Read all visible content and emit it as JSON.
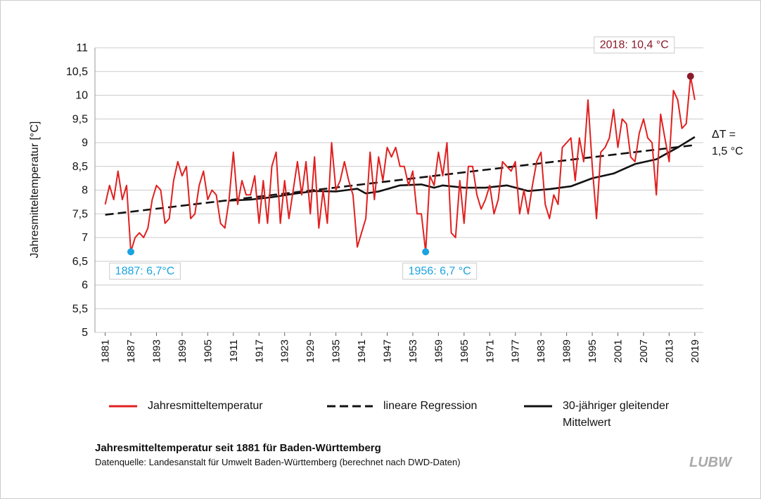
{
  "chart_data": {
    "type": "line",
    "y_label": "Jahresmitteltemperatur [°C]",
    "title": "Jahresmitteltemperatur seit 1881 für Baden-Württemberg",
    "subtitle": "Datenquelle: Landesanstalt für Umwelt Baden-Württemberg (berechnet nach DWD-Daten)",
    "logo": "LUBW",
    "x": [
      1881,
      1882,
      1883,
      1884,
      1885,
      1886,
      1887,
      1888,
      1889,
      1890,
      1891,
      1892,
      1893,
      1894,
      1895,
      1896,
      1897,
      1898,
      1899,
      1900,
      1901,
      1902,
      1903,
      1904,
      1905,
      1906,
      1907,
      1908,
      1909,
      1910,
      1911,
      1912,
      1913,
      1914,
      1915,
      1916,
      1917,
      1918,
      1919,
      1920,
      1921,
      1922,
      1923,
      1924,
      1925,
      1926,
      1927,
      1928,
      1929,
      1930,
      1931,
      1932,
      1933,
      1934,
      1935,
      1936,
      1937,
      1938,
      1939,
      1940,
      1941,
      1942,
      1943,
      1944,
      1945,
      1946,
      1947,
      1948,
      1949,
      1950,
      1951,
      1952,
      1953,
      1954,
      1955,
      1956,
      1957,
      1958,
      1959,
      1960,
      1961,
      1962,
      1963,
      1964,
      1965,
      1966,
      1967,
      1968,
      1969,
      1970,
      1971,
      1972,
      1973,
      1974,
      1975,
      1976,
      1977,
      1978,
      1979,
      1980,
      1981,
      1982,
      1983,
      1984,
      1985,
      1986,
      1987,
      1988,
      1989,
      1990,
      1991,
      1992,
      1993,
      1994,
      1995,
      1996,
      1997,
      1998,
      1999,
      2000,
      2001,
      2002,
      2003,
      2004,
      2005,
      2006,
      2007,
      2008,
      2009,
      2010,
      2011,
      2012,
      2013,
      2014,
      2015,
      2016,
      2017,
      2018,
      2019
    ],
    "series": [
      {
        "name": "Jahresmitteltemperatur",
        "color": "#e0201f",
        "style": "solid",
        "values": [
          7.7,
          8.1,
          7.8,
          8.4,
          7.8,
          8.1,
          6.7,
          7.0,
          7.1,
          7.0,
          7.2,
          7.8,
          8.1,
          8.0,
          7.3,
          7.4,
          8.2,
          8.6,
          8.3,
          8.5,
          7.4,
          7.5,
          8.1,
          8.4,
          7.8,
          8.0,
          7.9,
          7.3,
          7.2,
          7.8,
          8.8,
          7.7,
          8.2,
          7.9,
          7.9,
          8.3,
          7.3,
          8.2,
          7.3,
          8.5,
          8.8,
          7.3,
          8.2,
          7.4,
          8.0,
          8.6,
          7.9,
          8.6,
          7.5,
          8.7,
          7.2,
          8.0,
          7.3,
          9.0,
          8.0,
          8.2,
          8.6,
          8.2,
          7.9,
          6.8,
          7.1,
          7.4,
          8.8,
          7.8,
          8.7,
          8.2,
          8.9,
          8.7,
          8.9,
          8.5,
          8.5,
          8.1,
          8.4,
          7.5,
          7.5,
          6.7,
          8.3,
          8.1,
          8.8,
          8.3,
          9.0,
          7.1,
          7.0,
          8.2,
          7.3,
          8.5,
          8.5,
          7.9,
          7.6,
          7.8,
          8.1,
          7.5,
          7.8,
          8.6,
          8.5,
          8.4,
          8.6,
          7.5,
          8.0,
          7.5,
          8.1,
          8.6,
          8.8,
          7.7,
          7.4,
          7.9,
          7.7,
          8.9,
          9.0,
          9.1,
          8.2,
          9.1,
          8.6,
          9.9,
          8.5,
          7.4,
          8.8,
          8.9,
          9.1,
          9.7,
          8.9,
          9.5,
          9.4,
          8.7,
          8.6,
          9.2,
          9.5,
          9.1,
          9.0,
          7.9,
          9.6,
          9.1,
          8.6,
          10.1,
          9.9,
          9.3,
          9.4,
          10.4,
          9.9
        ]
      },
      {
        "name": "lineare Regression",
        "color": "#111111",
        "style": "dashed",
        "x": [
          1881,
          2019
        ],
        "values": [
          7.48,
          8.95
        ]
      },
      {
        "name": "30-jähriger gleitender Mittelwert",
        "color": "#111111",
        "style": "solid",
        "x": [
          1910,
          1915,
          1920,
          1925,
          1930,
          1935,
          1940,
          1942,
          1945,
          1950,
          1955,
          1958,
          1960,
          1965,
          1970,
          1975,
          1980,
          1985,
          1990,
          1995,
          2000,
          2005,
          2010,
          2015,
          2019
        ],
        "values": [
          7.78,
          7.8,
          7.85,
          7.92,
          7.98,
          7.97,
          8.03,
          7.93,
          7.97,
          8.1,
          8.12,
          8.05,
          8.1,
          8.05,
          8.05,
          8.1,
          7.98,
          8.02,
          8.08,
          8.25,
          8.35,
          8.55,
          8.65,
          8.9,
          9.12
        ]
      }
    ],
    "annotations": [
      {
        "text": "1887: 6,7°C",
        "x": 1887,
        "y": 6.7,
        "color": "#1aa3e0"
      },
      {
        "text": "1956: 6,7 °C",
        "x": 1956,
        "y": 6.7,
        "color": "#1aa3e0"
      },
      {
        "text": "2018: 10,4 °C",
        "x": 2018,
        "y": 10.4,
        "color": "#8b1a2a"
      }
    ],
    "delta_label": [
      "ΔT =",
      "1,5 °C"
    ],
    "xlim": [
      1878.6,
      2021
    ],
    "xticks": [
      1881,
      1887,
      1893,
      1899,
      1905,
      1911,
      1917,
      1923,
      1929,
      1935,
      1941,
      1947,
      1953,
      1959,
      1965,
      1971,
      1977,
      1983,
      1989,
      1995,
      2001,
      2007,
      2013,
      2019
    ],
    "ylim": [
      5,
      11
    ],
    "yticks": [
      5,
      {
        "value": 5.5,
        "label": "5,5"
      },
      6,
      {
        "value": 6.5,
        "label": "6,5"
      },
      7,
      {
        "value": 7.5,
        "label": "7,5"
      },
      8,
      {
        "value": 8.5,
        "label": "8,5"
      },
      9,
      {
        "value": 9.5,
        "label": "9,5"
      },
      10,
      {
        "value": 10.5,
        "label": "10,5"
      },
      11
    ],
    "grid": true
  }
}
